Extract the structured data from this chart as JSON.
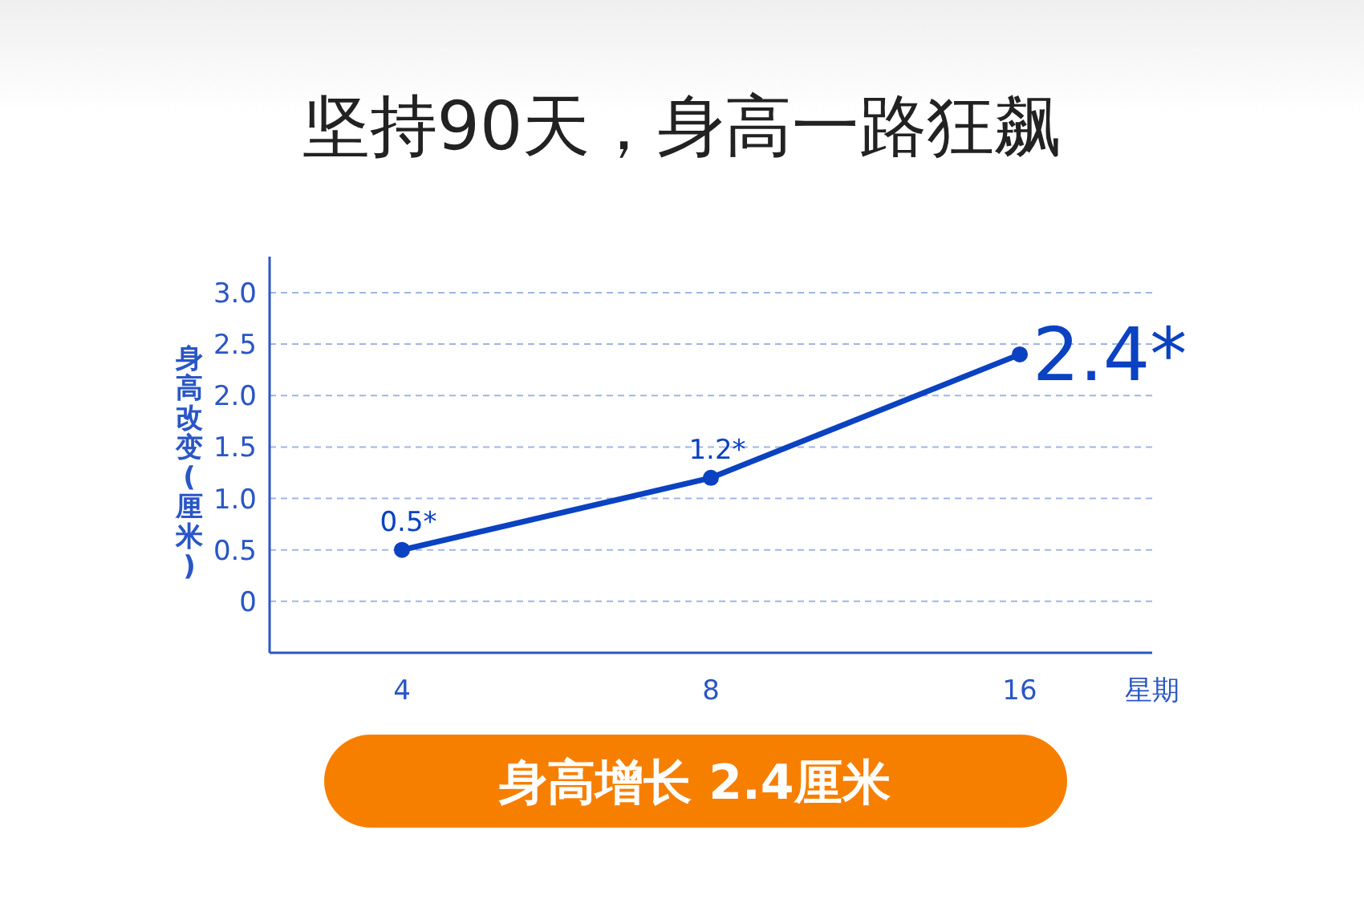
{
  "chart_data": {
    "type": "line",
    "title": "坚持90天，身高一路狂飙",
    "ylabel": "身高改变(厘米)",
    "xlabel": "星期",
    "categories": [
      "4",
      "8",
      "16"
    ],
    "series": [
      {
        "color": "#0b42c2",
        "values": [
          0.5,
          1.2,
          2.4
        ],
        "value_labels": [
          "0.5*",
          "1.2*",
          "2.4*"
        ]
      }
    ],
    "ylim": [
      -0.5,
      3.35
    ],
    "yticks": [
      0,
      {
        "value": 0.5,
        "label": "0.5"
      },
      {
        "value": 1,
        "label": "1.0"
      },
      {
        "value": 1.5,
        "label": "1.5"
      },
      {
        "value": 2,
        "label": "2.0"
      },
      {
        "value": 2.5,
        "label": "2.5"
      },
      {
        "value": 3,
        "label": "3.0"
      }
    ],
    "grid": "y",
    "marker": "circle",
    "line_style": "solid",
    "annotations": [
      "身高增长 2.4厘米"
    ]
  }
}
